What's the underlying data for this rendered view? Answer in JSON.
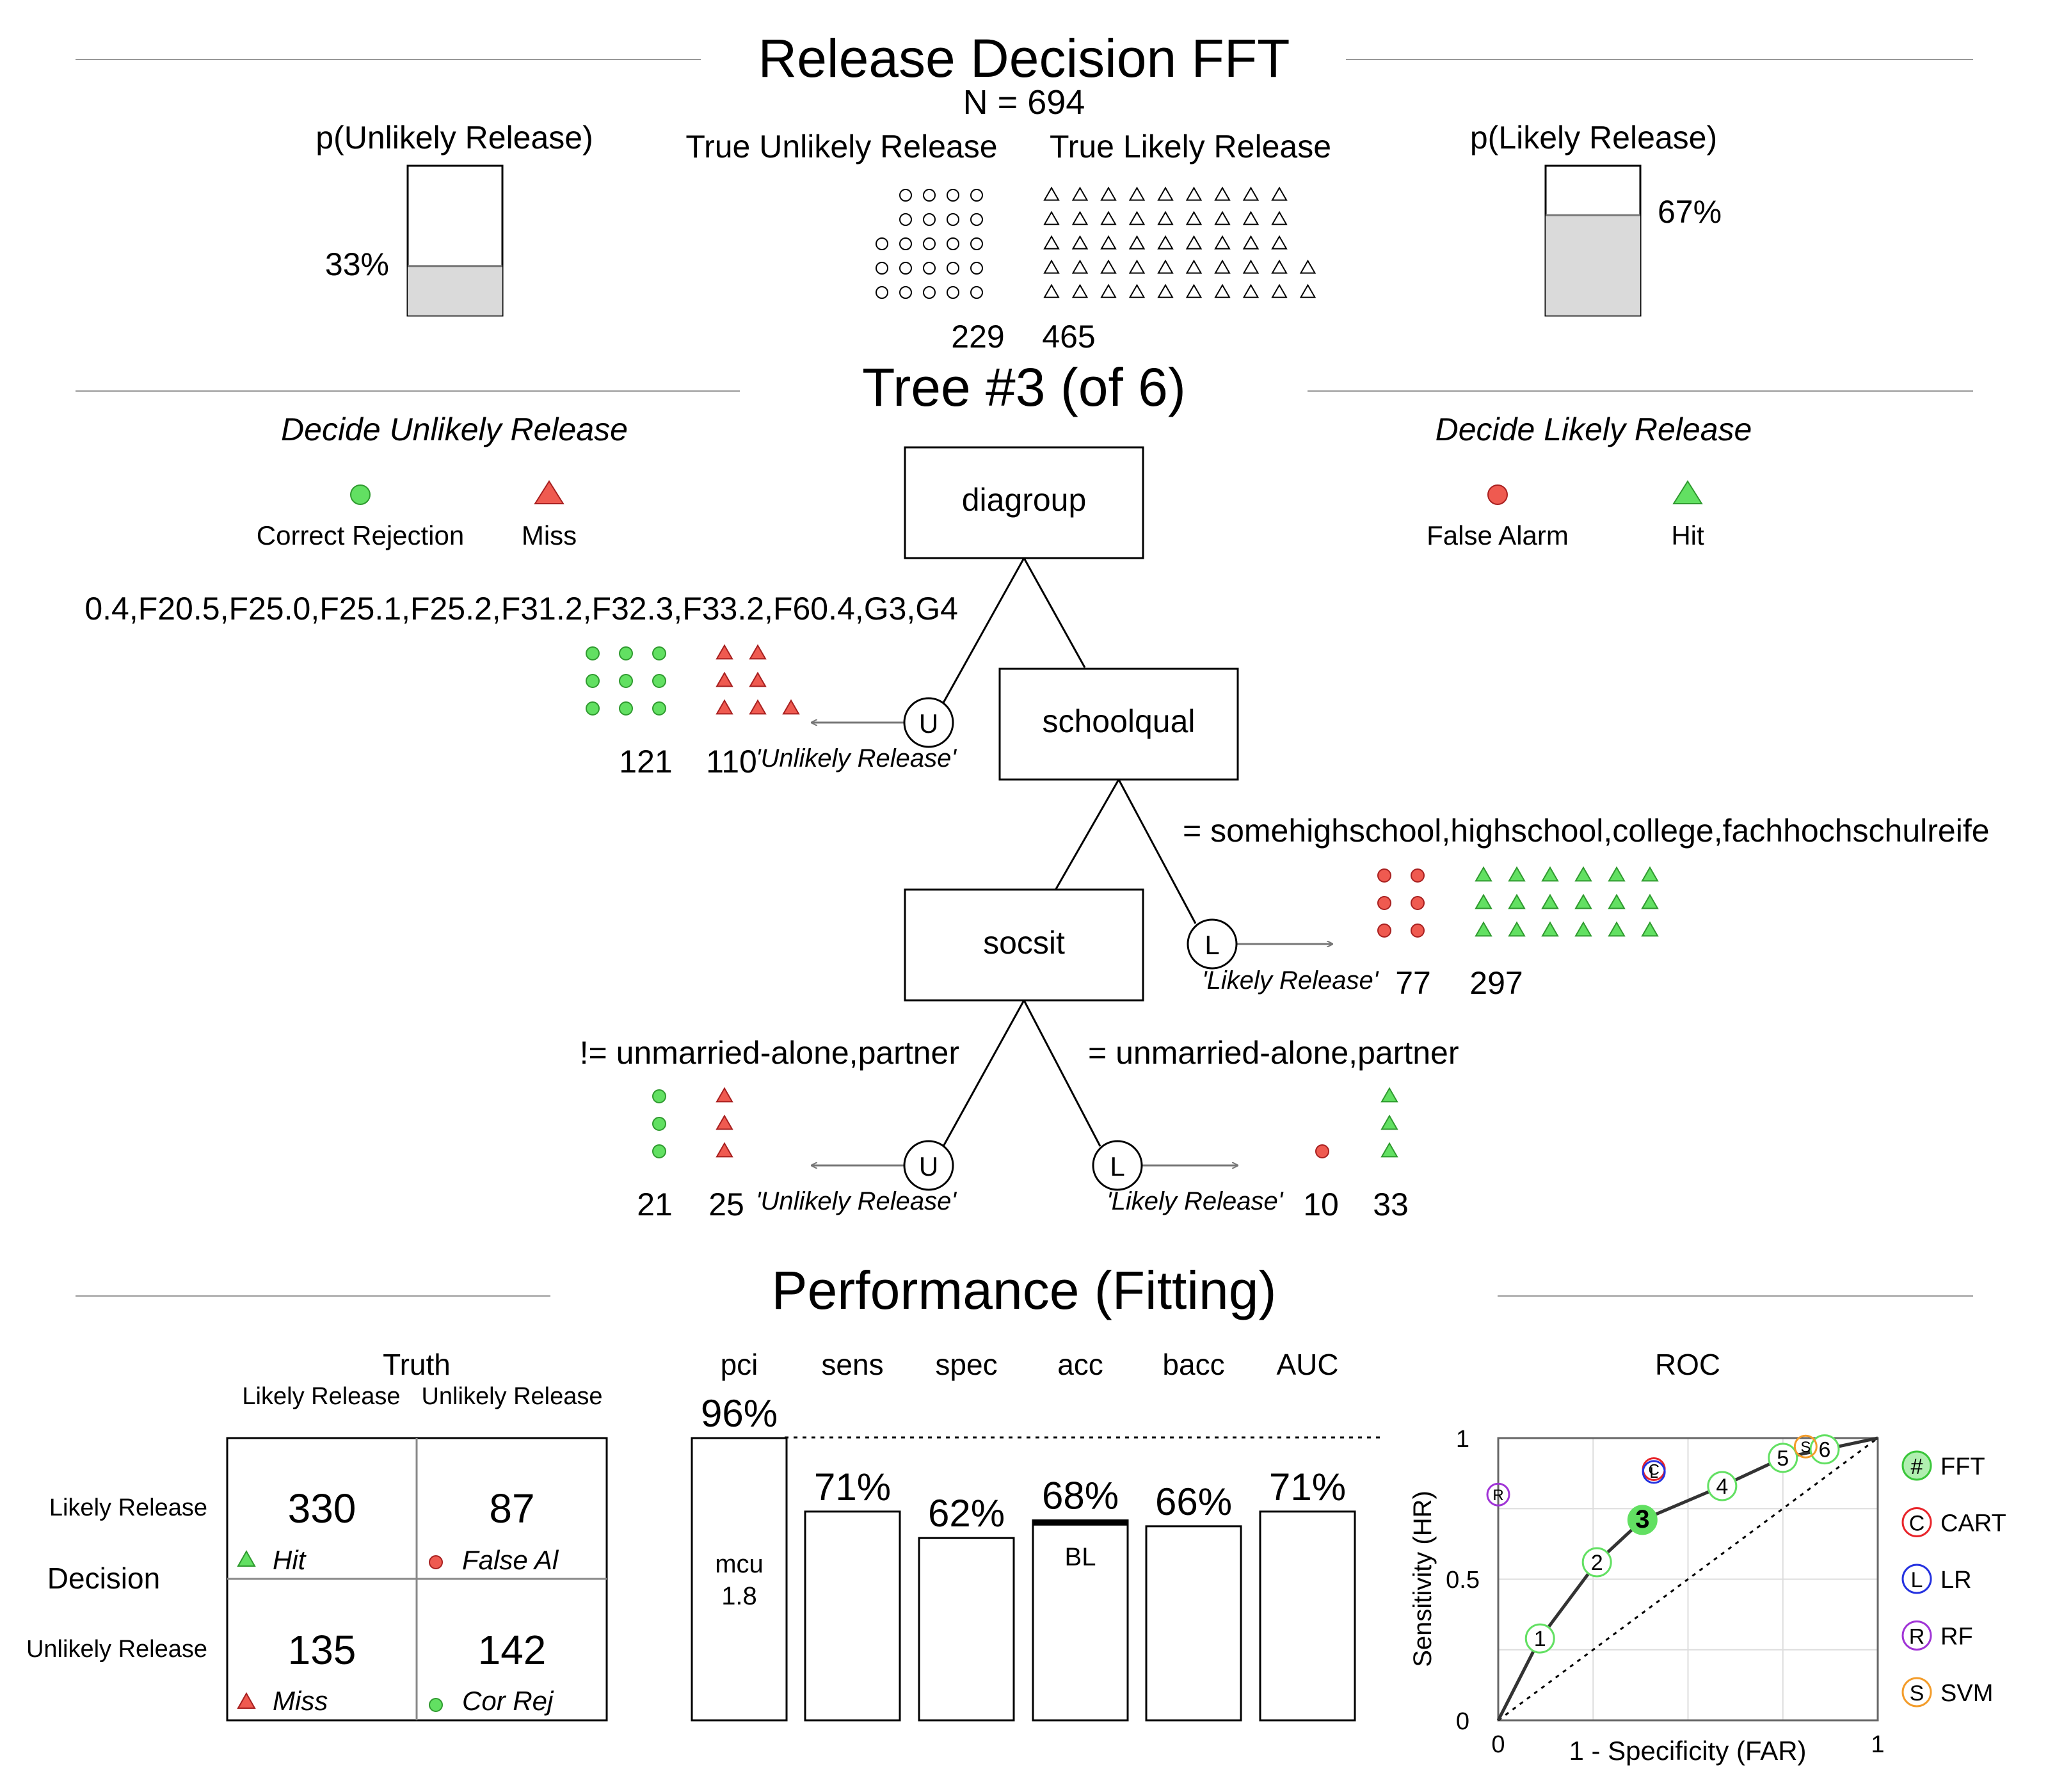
{
  "header": {
    "title": "Release Decision FFT",
    "n_label": "N = 694",
    "p_unlikely_label": "p(Unlikely Release)",
    "p_likely_label": "p(Likely Release)",
    "true_unlikely_label": "True Unlikely Release",
    "true_likely_label": "True Likely Release",
    "count_unlikely": "229",
    "count_likely": "465",
    "pct_unlikely": "33%",
    "pct_likely": "67%",
    "p_unlikely_value": 0.33,
    "p_likely_value": 0.67
  },
  "tree": {
    "title": "Tree #3 (of 6)",
    "decide_unlikely_label": "Decide Unlikely Release",
    "decide_likely_label": "Decide Likely Release",
    "legend": {
      "correct_rejection": "Correct Rejection",
      "miss": "Miss",
      "false_alarm": "False Alarm",
      "hit": "Hit"
    },
    "nodes": {
      "node1": "diagroup",
      "node2": "schoolqual",
      "node3": "socsit"
    },
    "cue1_label": "0.4,F20.5,F25.0,F25.1,F25.2,F31.2,F32.3,F33.2,F60.4,G3,G4",
    "exit1": {
      "letter": "U",
      "label": "'Unlikely Release'",
      "cr": "121",
      "miss": "110"
    },
    "cue2_label": "= somehighschool,highschool,college,fachhochschulreife",
    "exit2": {
      "letter": "L",
      "label": "'Likely Release'",
      "fa": "77",
      "hit": "297"
    },
    "cue3_left_label": "!= unmarried-alone,partner",
    "exit3_left": {
      "letter": "U",
      "label": "'Unlikely Release'",
      "cr": "21",
      "miss": "25"
    },
    "cue3_right_label": "= unmarried-alone,partner",
    "exit3_right": {
      "letter": "L",
      "label": "'Likely Release'",
      "fa": "10",
      "hit": "33"
    }
  },
  "performance": {
    "title": "Performance (Fitting)",
    "confusion": {
      "truth_label": "Truth",
      "col_likely": "Likely Release",
      "col_unlikely": "Unlikely Release",
      "decision_label": "Decision",
      "row_likely": "Likely Release",
      "row_unlikely": "Unlikely Release",
      "hit_value": "330",
      "hit_label": "Hit",
      "fa_value": "87",
      "fa_label": "False Al",
      "miss_value": "135",
      "miss_label": "Miss",
      "cr_value": "142",
      "cr_label": "Cor Rej"
    },
    "stats": {
      "headers": [
        "pci",
        "sens",
        "spec",
        "acc",
        "bacc",
        "AUC"
      ],
      "labels": [
        "96%",
        "71%",
        "62%",
        "68%",
        "66%",
        "71%"
      ],
      "values": [
        0.96,
        0.71,
        0.62,
        0.68,
        0.66,
        0.71
      ],
      "mcu_label": "mcu",
      "mcu_value": "1.8",
      "bl_label": "BL",
      "bl_value": 0.67
    },
    "roc": {
      "title": "ROC",
      "xlabel": "1 - Specificity (FAR)",
      "ylabel": "Sensitivity (HR)",
      "x_ticks": [
        "0",
        "1"
      ],
      "y_ticks": [
        "0",
        "0.5",
        "1"
      ],
      "fft_points": [
        {
          "id": "1",
          "far": 0.11,
          "hr": 0.29
        },
        {
          "id": "2",
          "far": 0.26,
          "hr": 0.56
        },
        {
          "id": "3",
          "far": 0.38,
          "hr": 0.71
        },
        {
          "id": "4",
          "far": 0.59,
          "hr": 0.83
        },
        {
          "id": "5",
          "far": 0.75,
          "hr": 0.93
        },
        {
          "id": "6",
          "far": 0.86,
          "hr": 0.96
        }
      ],
      "other_points": [
        {
          "id": "C",
          "name": "CART",
          "far": 0.41,
          "hr": 0.89,
          "color": "#e8242a"
        },
        {
          "id": "L",
          "name": "LR",
          "far": 0.41,
          "hr": 0.88,
          "color": "#2431e0"
        },
        {
          "id": "R",
          "name": "RF",
          "far": 0.0,
          "hr": 0.8,
          "color": "#a033d6"
        },
        {
          "id": "S",
          "name": "SVM",
          "far": 0.81,
          "hr": 0.97,
          "color": "#f39c2a"
        }
      ],
      "legend": [
        {
          "symbol": "#",
          "name": "FFT",
          "color": "#39c639"
        },
        {
          "symbol": "C",
          "name": "CART",
          "color": "#e8242a"
        },
        {
          "symbol": "L",
          "name": "LR",
          "color": "#2431e0"
        },
        {
          "symbol": "R",
          "name": "RF",
          "color": "#a033d6"
        },
        {
          "symbol": "S",
          "name": "SVM",
          "color": "#f39c2a"
        }
      ]
    }
  },
  "colors": {
    "correct": "#62e062",
    "correct_stroke": "#2f9a2f",
    "error": "#ef5a50",
    "error_stroke": "#a82020",
    "bar_fill": "#dadada",
    "line": "#777777"
  }
}
